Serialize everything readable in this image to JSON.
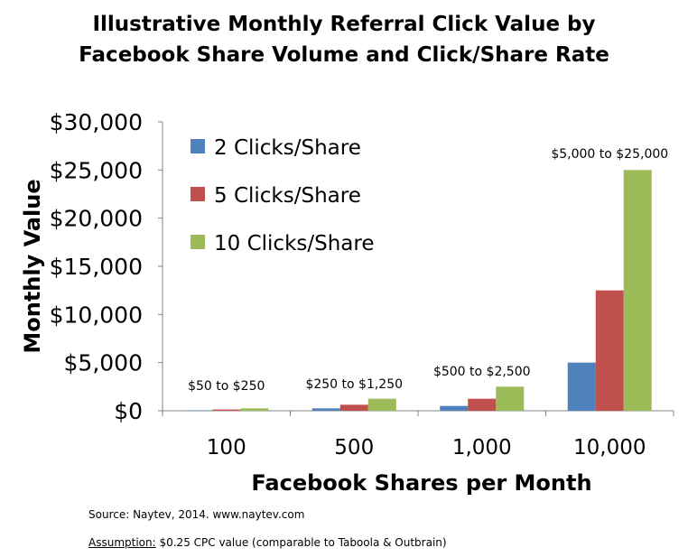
{
  "chart_data": {
    "type": "bar",
    "title_lines": [
      "Illustrative Monthly Referral Click Value by",
      "Facebook Share Volume and Click/Share Rate"
    ],
    "xlabel": "Facebook Shares per Month",
    "ylabel": "Monthly Value",
    "categories": [
      "100",
      "500",
      "1,000",
      "10,000"
    ],
    "series": [
      {
        "name": "2 Clicks/Share",
        "color": "#4F81BD",
        "values": [
          50,
          250,
          500,
          5000
        ]
      },
      {
        "name": "5 Clicks/Share",
        "color": "#C0504D",
        "values": [
          125,
          625,
          1250,
          12500
        ]
      },
      {
        "name": "10 Clicks/Share",
        "color": "#9BBB59",
        "values": [
          250,
          1250,
          2500,
          25000
        ]
      }
    ],
    "ylim": [
      0,
      30000
    ],
    "yticks": [
      0,
      5000,
      10000,
      15000,
      20000,
      25000,
      30000
    ],
    "ytick_labels": [
      "$0",
      "$5,000",
      "$10,000",
      "$15,000",
      "$20,000",
      "$25,000",
      "$30,000"
    ],
    "annotations": [
      "$50  to $250",
      "$250  to $1,250",
      "$500  to $2,500",
      "$5,000  to $25,000"
    ],
    "legend_position": "top-left",
    "grid": false
  },
  "notes": {
    "source": "Source: Naytev, 2014.  www.naytev.com",
    "assumption_label": "Assumption:",
    "assumption_text": " $0.25  CPC value (comparable to Taboola & Outbrain)"
  }
}
